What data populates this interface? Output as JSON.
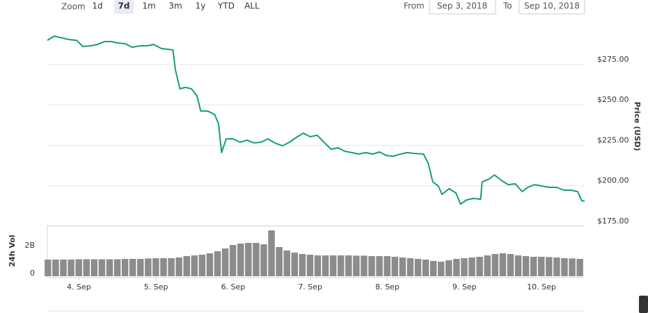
{
  "range_selector": {
    "zoom_label": "Zoom",
    "buttons": [
      "1d",
      "7d",
      "1m",
      "3m",
      "1y",
      "YTD",
      "ALL"
    ],
    "selected": 1,
    "from_label": "From",
    "from": "Sep 3, 2018",
    "to_label": "To",
    "to": "Sep 10, 2018"
  },
  "chart_data": [
    {
      "type": "line",
      "y_label": "Price (USD)",
      "color": "#169e74",
      "grid": true,
      "y_axis_side": "right",
      "xlim": [
        3.59,
        10.56
      ],
      "ylim": [
        175,
        300
      ],
      "yticks": [
        {
          "value": 175,
          "label": "$175.00"
        },
        {
          "value": 200,
          "label": "$200.00"
        },
        {
          "value": 225,
          "label": "$225.00"
        },
        {
          "value": 250,
          "label": "$250.00"
        },
        {
          "value": 275,
          "label": "$275.00"
        }
      ],
      "x": [
        3.59,
        3.68,
        3.79,
        3.88,
        3.97,
        4.05,
        4.15,
        4.24,
        4.33,
        4.42,
        4.51,
        4.6,
        4.69,
        4.79,
        4.88,
        4.97,
        5.07,
        5.22,
        5.25,
        5.31,
        5.38,
        5.46,
        5.53,
        5.58,
        5.67,
        5.76,
        5.81,
        5.85,
        5.91,
        6.0,
        6.09,
        6.18,
        6.27,
        6.36,
        6.45,
        6.54,
        6.64,
        6.73,
        6.82,
        6.91,
        7.0,
        7.09,
        7.18,
        7.27,
        7.36,
        7.45,
        7.54,
        7.63,
        7.72,
        7.81,
        7.9,
        7.99,
        8.08,
        8.17,
        8.26,
        8.35,
        8.47,
        8.53,
        8.59,
        8.66,
        8.71,
        8.8,
        8.89,
        8.95,
        9.03,
        9.12,
        9.21,
        9.23,
        9.32,
        9.39,
        9.48,
        9.57,
        9.66,
        9.75,
        9.82,
        9.91,
        10.0,
        10.1,
        10.2,
        10.29,
        10.38,
        10.47,
        10.52,
        10.56
      ],
      "values": [
        289.9,
        292.5,
        291.2,
        290.3,
        289.9,
        286.1,
        286.5,
        287.3,
        289.1,
        289.1,
        288.2,
        287.8,
        285.6,
        286.5,
        286.5,
        287.3,
        284.8,
        283.9,
        271.9,
        259.9,
        260.8,
        259.9,
        255.6,
        246.2,
        246.2,
        244.0,
        238.5,
        220.5,
        229.0,
        229.0,
        226.9,
        228.2,
        226.5,
        226.9,
        229.0,
        226.5,
        224.7,
        226.9,
        229.9,
        232.5,
        230.3,
        231.2,
        226.9,
        222.6,
        223.5,
        221.3,
        220.5,
        219.6,
        220.5,
        219.6,
        220.9,
        218.7,
        218.3,
        219.6,
        220.5,
        220.0,
        219.6,
        214.0,
        202.4,
        199.9,
        194.7,
        198.2,
        195.6,
        188.7,
        191.3,
        192.2,
        191.7,
        202.4,
        204.2,
        206.7,
        203.3,
        200.7,
        201.2,
        196.4,
        199.0,
        200.7,
        199.9,
        199.0,
        199.0,
        197.3,
        197.3,
        196.4,
        190.9,
        190.4
      ]
    },
    {
      "type": "bar",
      "y_label": "24h Vol",
      "color": "#8c8c8c",
      "y_axis_side": "left",
      "xlim": [
        3.59,
        10.56
      ],
      "ylim": [
        0,
        3.65
      ],
      "yticks": [
        0,
        {
          "value": 2,
          "label": "2B"
        }
      ],
      "xticks": [
        {
          "value": 4,
          "label": "4. Sep"
        },
        {
          "value": 5,
          "label": "5. Sep"
        },
        {
          "value": 6,
          "label": "6. Sep"
        },
        {
          "value": 7,
          "label": "7. Sep"
        },
        {
          "value": 8,
          "label": "8. Sep"
        },
        {
          "value": 9,
          "label": "9. Sep"
        },
        {
          "value": 10,
          "label": "10. Sep"
        }
      ],
      "x": [
        3.6,
        3.7,
        3.8,
        3.9,
        4.0,
        4.1,
        4.2,
        4.3,
        4.4,
        4.5,
        4.6,
        4.7,
        4.8,
        4.9,
        5.0,
        5.1,
        5.2,
        5.3,
        5.4,
        5.5,
        5.6,
        5.7,
        5.8,
        5.9,
        6.0,
        6.1,
        6.2,
        6.3,
        6.4,
        6.5,
        6.6,
        6.7,
        6.8,
        6.9,
        7.0,
        7.1,
        7.2,
        7.3,
        7.4,
        7.5,
        7.6,
        7.7,
        7.8,
        7.9,
        8.0,
        8.1,
        8.2,
        8.3,
        8.4,
        8.5,
        8.6,
        8.7,
        8.8,
        8.9,
        9.0,
        9.1,
        9.2,
        9.3,
        9.4,
        9.5,
        9.6,
        9.7,
        9.8,
        9.9,
        10.0,
        10.1,
        10.2,
        10.3,
        10.4,
        10.5
      ],
      "values": [
        1.2,
        1.2,
        1.2,
        1.2,
        1.22,
        1.22,
        1.22,
        1.22,
        1.22,
        1.22,
        1.25,
        1.25,
        1.25,
        1.28,
        1.3,
        1.3,
        1.3,
        1.35,
        1.45,
        1.5,
        1.55,
        1.65,
        1.8,
        2.0,
        2.25,
        2.35,
        2.4,
        2.4,
        2.3,
        3.3,
        2.1,
        1.85,
        1.7,
        1.6,
        1.55,
        1.5,
        1.5,
        1.5,
        1.5,
        1.5,
        1.48,
        1.48,
        1.45,
        1.45,
        1.45,
        1.4,
        1.35,
        1.3,
        1.25,
        1.2,
        1.1,
        1.05,
        1.15,
        1.25,
        1.3,
        1.35,
        1.4,
        1.5,
        1.6,
        1.65,
        1.6,
        1.5,
        1.45,
        1.4,
        1.4,
        1.38,
        1.35,
        1.3,
        1.28,
        1.25
      ]
    }
  ]
}
